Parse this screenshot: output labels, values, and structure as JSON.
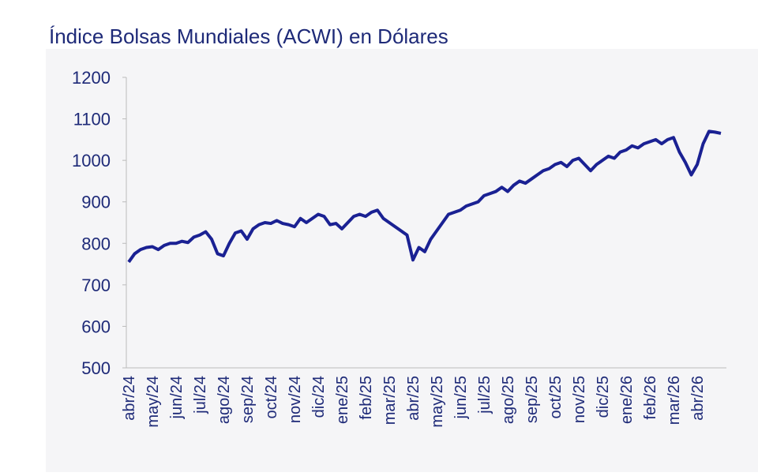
{
  "chart_data": {
    "type": "line",
    "title": "Índice Bolsas Mundiales (ACWI) en Dólares",
    "categories": [
      "abr/24",
      null,
      null,
      null,
      "may/24",
      null,
      null,
      null,
      "jun/24",
      null,
      null,
      null,
      "jul/24",
      null,
      null,
      null,
      "ago/24",
      null,
      null,
      null,
      "sep/24",
      null,
      null,
      null,
      "oct/24",
      null,
      null,
      null,
      "nov/24",
      null,
      null,
      null,
      "dic/24",
      null,
      null,
      null,
      "ene/25",
      null,
      null,
      null,
      "feb/25",
      null,
      null,
      null,
      "mar/25",
      null,
      null,
      null,
      "abr/25",
      null,
      null,
      null,
      "may/25",
      null,
      null,
      null,
      "jun/25",
      null,
      null,
      null,
      "jul/25",
      null,
      null,
      null,
      "ago/25",
      null,
      null,
      null,
      "sep/25",
      null,
      null,
      null,
      "oct/25",
      null,
      null,
      null,
      "nov/25",
      null,
      null,
      null,
      "dic/25",
      null,
      null,
      null,
      "ene/26",
      null,
      null,
      null,
      "feb/26",
      null,
      null,
      null,
      "mar/26",
      null,
      null,
      null,
      "abr/26",
      null,
      null,
      null,
      null
    ],
    "series": [
      {
        "name": "ACWI",
        "color": "#1a2193",
        "values": [
          755,
          775,
          785,
          790,
          792,
          785,
          795,
          800,
          800,
          805,
          802,
          815,
          820,
          828,
          810,
          775,
          770,
          800,
          825,
          830,
          810,
          835,
          845,
          850,
          848,
          855,
          848,
          845,
          840,
          860,
          850,
          860,
          870,
          865,
          845,
          848,
          835,
          850,
          865,
          870,
          865,
          875,
          880,
          860,
          850,
          840,
          830,
          820,
          760,
          790,
          780,
          810,
          830,
          850,
          870,
          875,
          880,
          890,
          895,
          900,
          915,
          920,
          925,
          935,
          925,
          940,
          950,
          945,
          955,
          965,
          975,
          980,
          990,
          995,
          985,
          1000,
          1005,
          990,
          975,
          990,
          1000,
          1010,
          1005,
          1020,
          1025,
          1035,
          1030,
          1040,
          1045,
          1050,
          1040,
          1050,
          1055,
          1020,
          995,
          965,
          990,
          1040,
          1070,
          1068,
          1065
        ]
      }
    ],
    "ylim": [
      500,
      1200
    ],
    "yticks": [
      500,
      600,
      700,
      800,
      900,
      1000,
      1100,
      1200
    ]
  }
}
